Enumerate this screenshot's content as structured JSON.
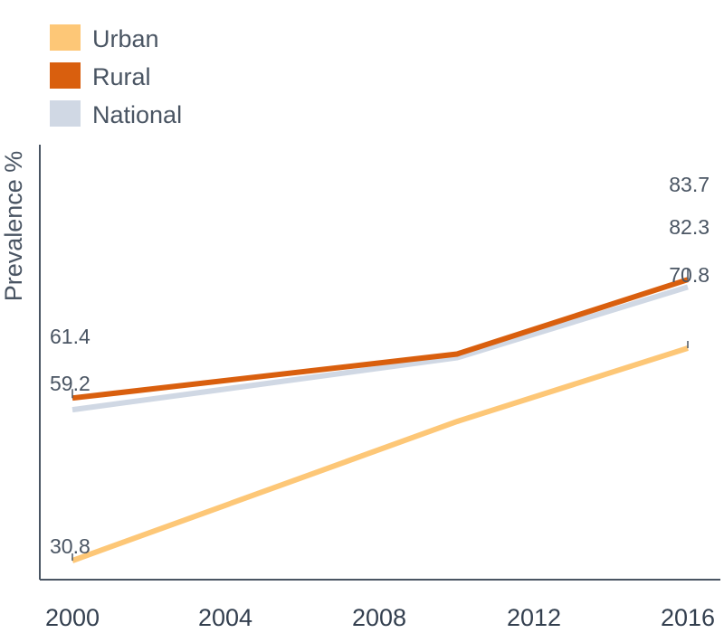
{
  "chart_data": {
    "type": "line",
    "title": "",
    "xlabel": "",
    "ylabel": "Prevalence %",
    "x_ticks": [
      "2000",
      "2004",
      "2008",
      "2012",
      "2016"
    ],
    "xlim": [
      2000,
      2016
    ],
    "grid": false,
    "legend_position": "top-left",
    "series": [
      {
        "name": "Urban",
        "color": "#fdc777",
        "points": [
          {
            "x": 2000,
            "y": 30.8
          },
          {
            "x": 2010,
            "y": 57.0
          },
          {
            "x": 2016,
            "y": 70.8
          }
        ],
        "labels": [
          {
            "x": 2000,
            "y": 30.8,
            "text": "30.8"
          },
          {
            "x": 2016,
            "y": 70.8,
            "text": "70.8"
          }
        ]
      },
      {
        "name": "Rural",
        "color": "#d95f0e",
        "points": [
          {
            "x": 2000,
            "y": 61.4
          },
          {
            "x": 2010,
            "y": 69.7
          },
          {
            "x": 2016,
            "y": 83.7
          }
        ],
        "labels": [
          {
            "x": 2000,
            "y": 61.4,
            "text": "61.4"
          },
          {
            "x": 2016,
            "y": 83.7,
            "text": "83.7"
          }
        ]
      },
      {
        "name": "National",
        "color": "#d0d8e4",
        "points": [
          {
            "x": 2000,
            "y": 59.2
          },
          {
            "x": 2010,
            "y": 69.0
          },
          {
            "x": 2016,
            "y": 82.3
          }
        ],
        "labels": [
          {
            "x": 2000,
            "y": 59.2,
            "text": "59.2"
          },
          {
            "x": 2016,
            "y": 82.3,
            "text": "82.3"
          }
        ]
      }
    ]
  }
}
